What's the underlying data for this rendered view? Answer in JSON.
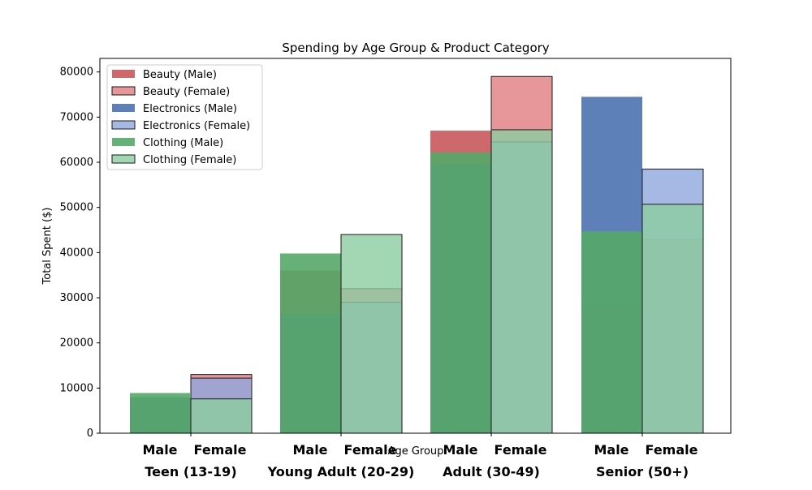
{
  "chart_data": {
    "type": "bar",
    "title": "Spending by Age Group & Product Category",
    "xlabel": "Age Group",
    "ylabel": "Total Spent ($)",
    "ylim": [
      0,
      83000
    ],
    "yticks": [
      0,
      10000,
      20000,
      30000,
      40000,
      50000,
      60000,
      70000,
      80000
    ],
    "grid": false,
    "legend_position": "top-left",
    "categories": [
      "Teen (13-19)",
      "Young Adult (20-29)",
      "Adult (30-49)",
      "Senior (50+)"
    ],
    "genders": [
      "Male",
      "Female"
    ],
    "series": [
      {
        "name": "Beauty (Male)",
        "category": "Beauty",
        "gender": "Male",
        "color": "#c44e52",
        "opacity": 0.85,
        "outlined": false,
        "values": [
          8000,
          36000,
          67000,
          29000
        ]
      },
      {
        "name": "Beauty (Female)",
        "category": "Beauty",
        "gender": "Female",
        "color": "#e17c80",
        "opacity": 0.8,
        "outlined": true,
        "values": [
          13000,
          32000,
          79000,
          43000
        ]
      },
      {
        "name": "Electronics (Male)",
        "category": "Electronics",
        "gender": "Male",
        "color": "#4c72b0",
        "opacity": 0.9,
        "outlined": false,
        "values": [
          8000,
          26500,
          59500,
          74500
        ]
      },
      {
        "name": "Electronics (Female)",
        "category": "Electronics",
        "gender": "Female",
        "color": "#8ea7dd",
        "opacity": 0.8,
        "outlined": true,
        "values": [
          12200,
          29000,
          64500,
          58500
        ]
      },
      {
        "name": "Clothing (Male)",
        "category": "Clothing",
        "gender": "Male",
        "color": "#55a868",
        "opacity": 0.9,
        "outlined": false,
        "values": [
          8900,
          39800,
          62200,
          44700
        ]
      },
      {
        "name": "Clothing (Female)",
        "category": "Clothing",
        "gender": "Female",
        "color": "#8ccda0",
        "opacity": 0.8,
        "outlined": true,
        "values": [
          7600,
          44000,
          67200,
          50700
        ]
      }
    ]
  }
}
